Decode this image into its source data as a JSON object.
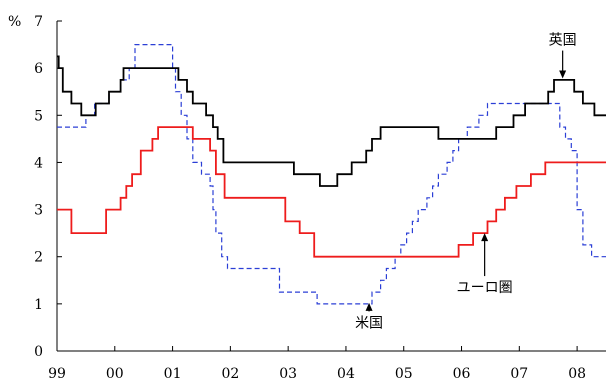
{
  "chart_data": {
    "type": "line",
    "title": "",
    "xlabel": "",
    "ylabel": "%",
    "y_unit_label": "%",
    "ylim": [
      0,
      7
    ],
    "y_ticks": [
      0,
      1,
      2,
      3,
      4,
      5,
      6,
      7
    ],
    "xlim": [
      1999.0,
      2008.5
    ],
    "x_ticks": [
      {
        "x": 1999,
        "label": "99"
      },
      {
        "x": 2000,
        "label": "00"
      },
      {
        "x": 2001,
        "label": "01"
      },
      {
        "x": 2002,
        "label": "02"
      },
      {
        "x": 2003,
        "label": "03"
      },
      {
        "x": 2004,
        "label": "04"
      },
      {
        "x": 2005,
        "label": "05"
      },
      {
        "x": 2006,
        "label": "06"
      },
      {
        "x": 2007,
        "label": "07"
      },
      {
        "x": 2008,
        "label": "08"
      }
    ],
    "grid": false,
    "legend": "none",
    "series": [
      {
        "name": "英国",
        "color": "#000000",
        "style": "solid",
        "step": true,
        "points": [
          [
            1999.0,
            6.25
          ],
          [
            1999.03,
            6.0
          ],
          [
            1999.1,
            5.5
          ],
          [
            1999.25,
            5.25
          ],
          [
            1999.42,
            5.0
          ],
          [
            1999.67,
            5.25
          ],
          [
            1999.9,
            5.5
          ],
          [
            2000.1,
            5.75
          ],
          [
            2000.15,
            6.0
          ],
          [
            2001.1,
            5.75
          ],
          [
            2001.25,
            5.5
          ],
          [
            2001.35,
            5.25
          ],
          [
            2001.58,
            5.0
          ],
          [
            2001.7,
            4.75
          ],
          [
            2001.78,
            4.5
          ],
          [
            2001.88,
            4.0
          ],
          [
            2003.1,
            3.75
          ],
          [
            2003.55,
            3.5
          ],
          [
            2003.85,
            3.75
          ],
          [
            2004.1,
            4.0
          ],
          [
            2004.35,
            4.25
          ],
          [
            2004.45,
            4.5
          ],
          [
            2004.6,
            4.75
          ],
          [
            2005.6,
            4.5
          ],
          [
            2006.6,
            4.75
          ],
          [
            2006.9,
            5.0
          ],
          [
            2007.1,
            5.25
          ],
          [
            2007.5,
            5.5
          ],
          [
            2007.6,
            5.75
          ],
          [
            2007.95,
            5.5
          ],
          [
            2008.1,
            5.25
          ],
          [
            2008.3,
            5.0
          ],
          [
            2008.5,
            5.0
          ]
        ]
      },
      {
        "name": "米国",
        "color": "#2b3fd6",
        "style": "dashed",
        "step": true,
        "points": [
          [
            1999.0,
            4.75
          ],
          [
            1999.5,
            5.0
          ],
          [
            1999.65,
            5.25
          ],
          [
            1999.9,
            5.5
          ],
          [
            2000.1,
            5.75
          ],
          [
            2000.25,
            6.0
          ],
          [
            2000.35,
            6.5
          ],
          [
            2001.0,
            6.0
          ],
          [
            2001.05,
            5.5
          ],
          [
            2001.15,
            5.0
          ],
          [
            2001.25,
            4.5
          ],
          [
            2001.35,
            4.0
          ],
          [
            2001.5,
            3.75
          ],
          [
            2001.65,
            3.5
          ],
          [
            2001.7,
            3.0
          ],
          [
            2001.75,
            2.5
          ],
          [
            2001.85,
            2.0
          ],
          [
            2001.95,
            1.75
          ],
          [
            2002.85,
            1.25
          ],
          [
            2003.5,
            1.0
          ],
          [
            2004.45,
            1.25
          ],
          [
            2004.6,
            1.5
          ],
          [
            2004.7,
            1.75
          ],
          [
            2004.85,
            2.0
          ],
          [
            2004.95,
            2.25
          ],
          [
            2005.05,
            2.5
          ],
          [
            2005.15,
            2.75
          ],
          [
            2005.25,
            3.0
          ],
          [
            2005.4,
            3.25
          ],
          [
            2005.5,
            3.5
          ],
          [
            2005.6,
            3.75
          ],
          [
            2005.75,
            4.0
          ],
          [
            2005.85,
            4.25
          ],
          [
            2005.95,
            4.5
          ],
          [
            2006.1,
            4.75
          ],
          [
            2006.3,
            5.0
          ],
          [
            2006.45,
            5.25
          ],
          [
            2007.7,
            4.75
          ],
          [
            2007.8,
            4.5
          ],
          [
            2007.9,
            4.25
          ],
          [
            2008.0,
            3.0
          ],
          [
            2008.1,
            2.25
          ],
          [
            2008.25,
            2.0
          ],
          [
            2008.5,
            2.0
          ]
        ]
      },
      {
        "name": "ユーロ圏",
        "color": "#ee1c1c",
        "style": "solid",
        "step": true,
        "points": [
          [
            1999.0,
            3.0
          ],
          [
            1999.25,
            2.5
          ],
          [
            1999.85,
            3.0
          ],
          [
            2000.1,
            3.25
          ],
          [
            2000.2,
            3.5
          ],
          [
            2000.3,
            3.75
          ],
          [
            2000.45,
            4.25
          ],
          [
            2000.65,
            4.5
          ],
          [
            2000.75,
            4.75
          ],
          [
            2001.35,
            4.5
          ],
          [
            2001.65,
            4.25
          ],
          [
            2001.75,
            3.75
          ],
          [
            2001.9,
            3.25
          ],
          [
            2002.95,
            2.75
          ],
          [
            2003.2,
            2.5
          ],
          [
            2003.45,
            2.0
          ],
          [
            2005.95,
            2.25
          ],
          [
            2006.2,
            2.5
          ],
          [
            2006.45,
            2.75
          ],
          [
            2006.6,
            3.0
          ],
          [
            2006.75,
            3.25
          ],
          [
            2006.95,
            3.5
          ],
          [
            2007.2,
            3.75
          ],
          [
            2007.45,
            4.0
          ],
          [
            2008.5,
            4.0
          ]
        ]
      }
    ],
    "annotations": [
      {
        "text": "英国",
        "series": "英国",
        "label_at": [
          2007.75,
          6.5
        ],
        "arrow_to": [
          2007.75,
          5.78
        ]
      },
      {
        "text": "米国",
        "series": "米国",
        "label_at": [
          2004.4,
          0.5
        ],
        "arrow_to": [
          2004.4,
          1.02
        ]
      },
      {
        "text": "ユーロ圏",
        "series": "ユーロ圏",
        "label_at": [
          2006.4,
          1.25
        ],
        "arrow_to": [
          2006.4,
          2.5
        ]
      }
    ]
  }
}
